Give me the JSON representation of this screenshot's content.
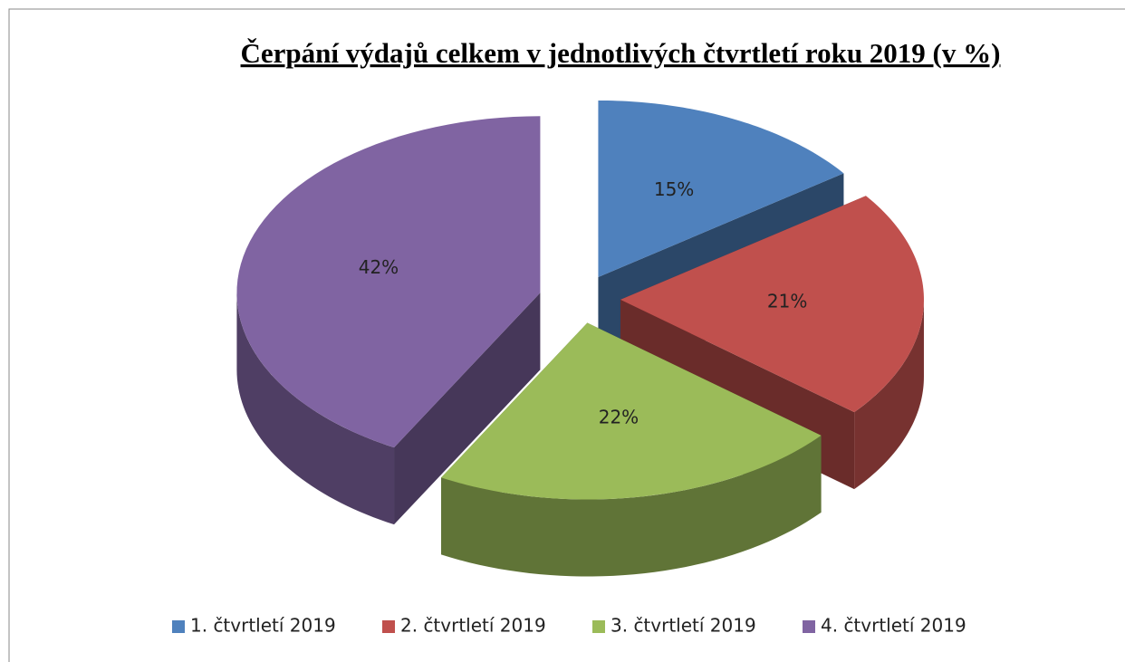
{
  "chart_data": {
    "type": "pie3d",
    "title": "Čerpání výdajů celkem v jednotlivých čtvrtletí roku 2019 (v %)",
    "categories": [
      "1. čtvrtletí 2019",
      "2. čtvrtletí 2019",
      "3. čtvrtletí 2019",
      "4. čtvrtletí 2019"
    ],
    "values": [
      15,
      21,
      22,
      42
    ],
    "value_labels": [
      "15%",
      "21%",
      "22%",
      "42%"
    ],
    "colors": [
      "#4f81bd",
      "#c0504d",
      "#9bbb59",
      "#8064a2"
    ],
    "legend": "bottom"
  }
}
